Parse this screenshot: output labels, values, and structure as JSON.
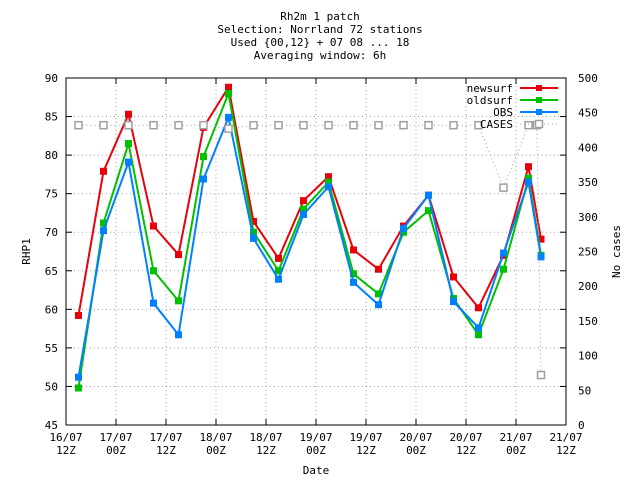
{
  "chart_data": {
    "type": "line",
    "title_lines": [
      "Rh2m 1 patch",
      "Selection: Norrland     72 stations",
      "Used {00,12} + 07 08 ... 18",
      "Averaging window:  6h"
    ],
    "xlabel": "Date",
    "ylabel": "RHP1",
    "y2label": "No cases",
    "ylim": [
      45,
      90
    ],
    "y_ticks": [
      45,
      50,
      55,
      60,
      65,
      70,
      75,
      80,
      85,
      90
    ],
    "y2lim": [
      0,
      500
    ],
    "y2_ticks": [
      0,
      50,
      100,
      150,
      200,
      250,
      300,
      350,
      400,
      450,
      500
    ],
    "x_range_hours": [
      0,
      120
    ],
    "x_ticks": [
      {
        "h": 0,
        "l1": "16/07",
        "l2": "12Z"
      },
      {
        "h": 12,
        "l1": "17/07",
        "l2": "00Z"
      },
      {
        "h": 24,
        "l1": "17/07",
        "l2": "12Z"
      },
      {
        "h": 36,
        "l1": "18/07",
        "l2": "00Z"
      },
      {
        "h": 48,
        "l1": "18/07",
        "l2": "12Z"
      },
      {
        "h": 60,
        "l1": "19/07",
        "l2": "00Z"
      },
      {
        "h": 72,
        "l1": "19/07",
        "l2": "12Z"
      },
      {
        "h": 84,
        "l1": "20/07",
        "l2": "00Z"
      },
      {
        "h": 96,
        "l1": "20/07",
        "l2": "12Z"
      },
      {
        "h": 108,
        "l1": "21/07",
        "l2": "00Z"
      },
      {
        "h": 120,
        "l1": "21/07",
        "l2": "12Z"
      }
    ],
    "x_hours": [
      3,
      9,
      15,
      21,
      27,
      33,
      39,
      45,
      51,
      57,
      63,
      69,
      75,
      81,
      87,
      93,
      99,
      105,
      111,
      114
    ],
    "series": [
      {
        "name": "newsurf",
        "color": "#e8000b",
        "axis": "y1",
        "marker": "square-filled",
        "values": [
          59.2,
          77.9,
          85.3,
          70.8,
          67.1,
          83.6,
          88.8,
          71.4,
          66.6,
          74.1,
          77.2,
          67.7,
          65.2,
          70.8,
          74.8,
          64.2,
          60.2,
          67.0,
          78.5,
          69.1
        ]
      },
      {
        "name": "oldsurf",
        "color": "#00c000",
        "axis": "y1",
        "marker": "square-filled",
        "values": [
          49.8,
          71.2,
          81.5,
          65.0,
          61.1,
          79.8,
          88.0,
          70.0,
          65.0,
          73.0,
          76.5,
          64.6,
          62.0,
          70.0,
          72.8,
          61.4,
          56.7,
          65.2,
          77.0,
          67.0
        ]
      },
      {
        "name": "OBS",
        "color": "#0080ff",
        "axis": "y1",
        "marker": "square-filled",
        "values": [
          51.2,
          70.2,
          79.1,
          60.8,
          56.7,
          76.9,
          84.9,
          69.2,
          63.9,
          72.3,
          75.9,
          63.5,
          60.6,
          70.5,
          74.8,
          61.0,
          57.6,
          67.3,
          76.5,
          66.8
        ]
      },
      {
        "name": "CASES",
        "color": "#a0a0a0",
        "axis": "y2",
        "marker": "square-open",
        "dashed": true,
        "values": [
          432,
          432,
          432,
          432,
          432,
          432,
          427,
          432,
          432,
          432,
          432,
          432,
          432,
          432,
          432,
          432,
          432,
          342,
          432,
          72
        ]
      }
    ],
    "cases_extra_point": {
      "h": 113,
      "value": 432
    },
    "grid": true,
    "legend_position": "top-right"
  }
}
